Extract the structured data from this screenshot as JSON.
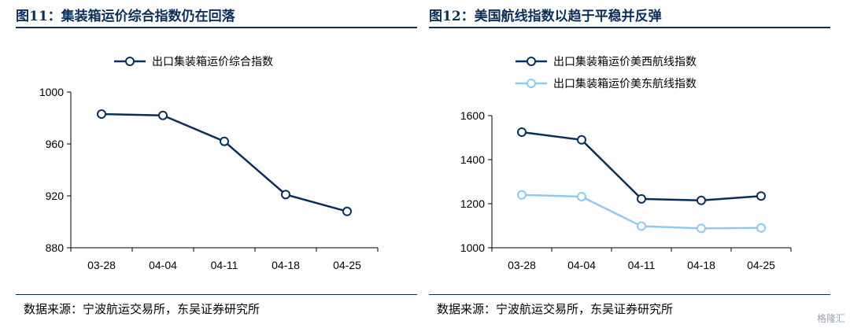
{
  "figures": [
    {
      "title": "图11：集装箱运价综合指数仍在回落",
      "source": "数据来源：宁波航运交易所，东吴证券研究所",
      "chart_data": {
        "type": "line",
        "categories": [
          "03-28",
          "04-04",
          "04-11",
          "04-18",
          "04-25"
        ],
        "series": [
          {
            "name": "出口集装箱运价综合指数",
            "values": [
              983,
              982,
              962,
              921,
              908
            ],
            "color": "#0b2f5b",
            "marker": "circle-open"
          }
        ],
        "ylim": [
          880,
          1000
        ],
        "yticks": [
          880,
          920,
          960,
          1000
        ],
        "xlabel": "",
        "ylabel": "",
        "legend": "top",
        "grid": false
      }
    },
    {
      "title": "图12：美国航线指数以趋于平稳并反弹",
      "source": "数据来源：宁波航运交易所，东吴证券研究所",
      "chart_data": {
        "type": "line",
        "categories": [
          "03-28",
          "04-04",
          "04-11",
          "04-18",
          "04-25"
        ],
        "series": [
          {
            "name": "出口集装箱运价美西航线指数",
            "values": [
              1525,
              1490,
              1222,
              1215,
              1235
            ],
            "color": "#0b2f5b",
            "marker": "circle-open"
          },
          {
            "name": "出口集装箱运价美东航线指数",
            "values": [
              1240,
              1232,
              1098,
              1088,
              1090
            ],
            "color": "#8ec9f0",
            "marker": "circle-open"
          }
        ],
        "ylim": [
          1000,
          1600
        ],
        "yticks": [
          1000,
          1200,
          1400,
          1600
        ],
        "xlabel": "",
        "ylabel": "",
        "legend": "top",
        "grid": false
      }
    }
  ],
  "watermark": "格隆汇"
}
